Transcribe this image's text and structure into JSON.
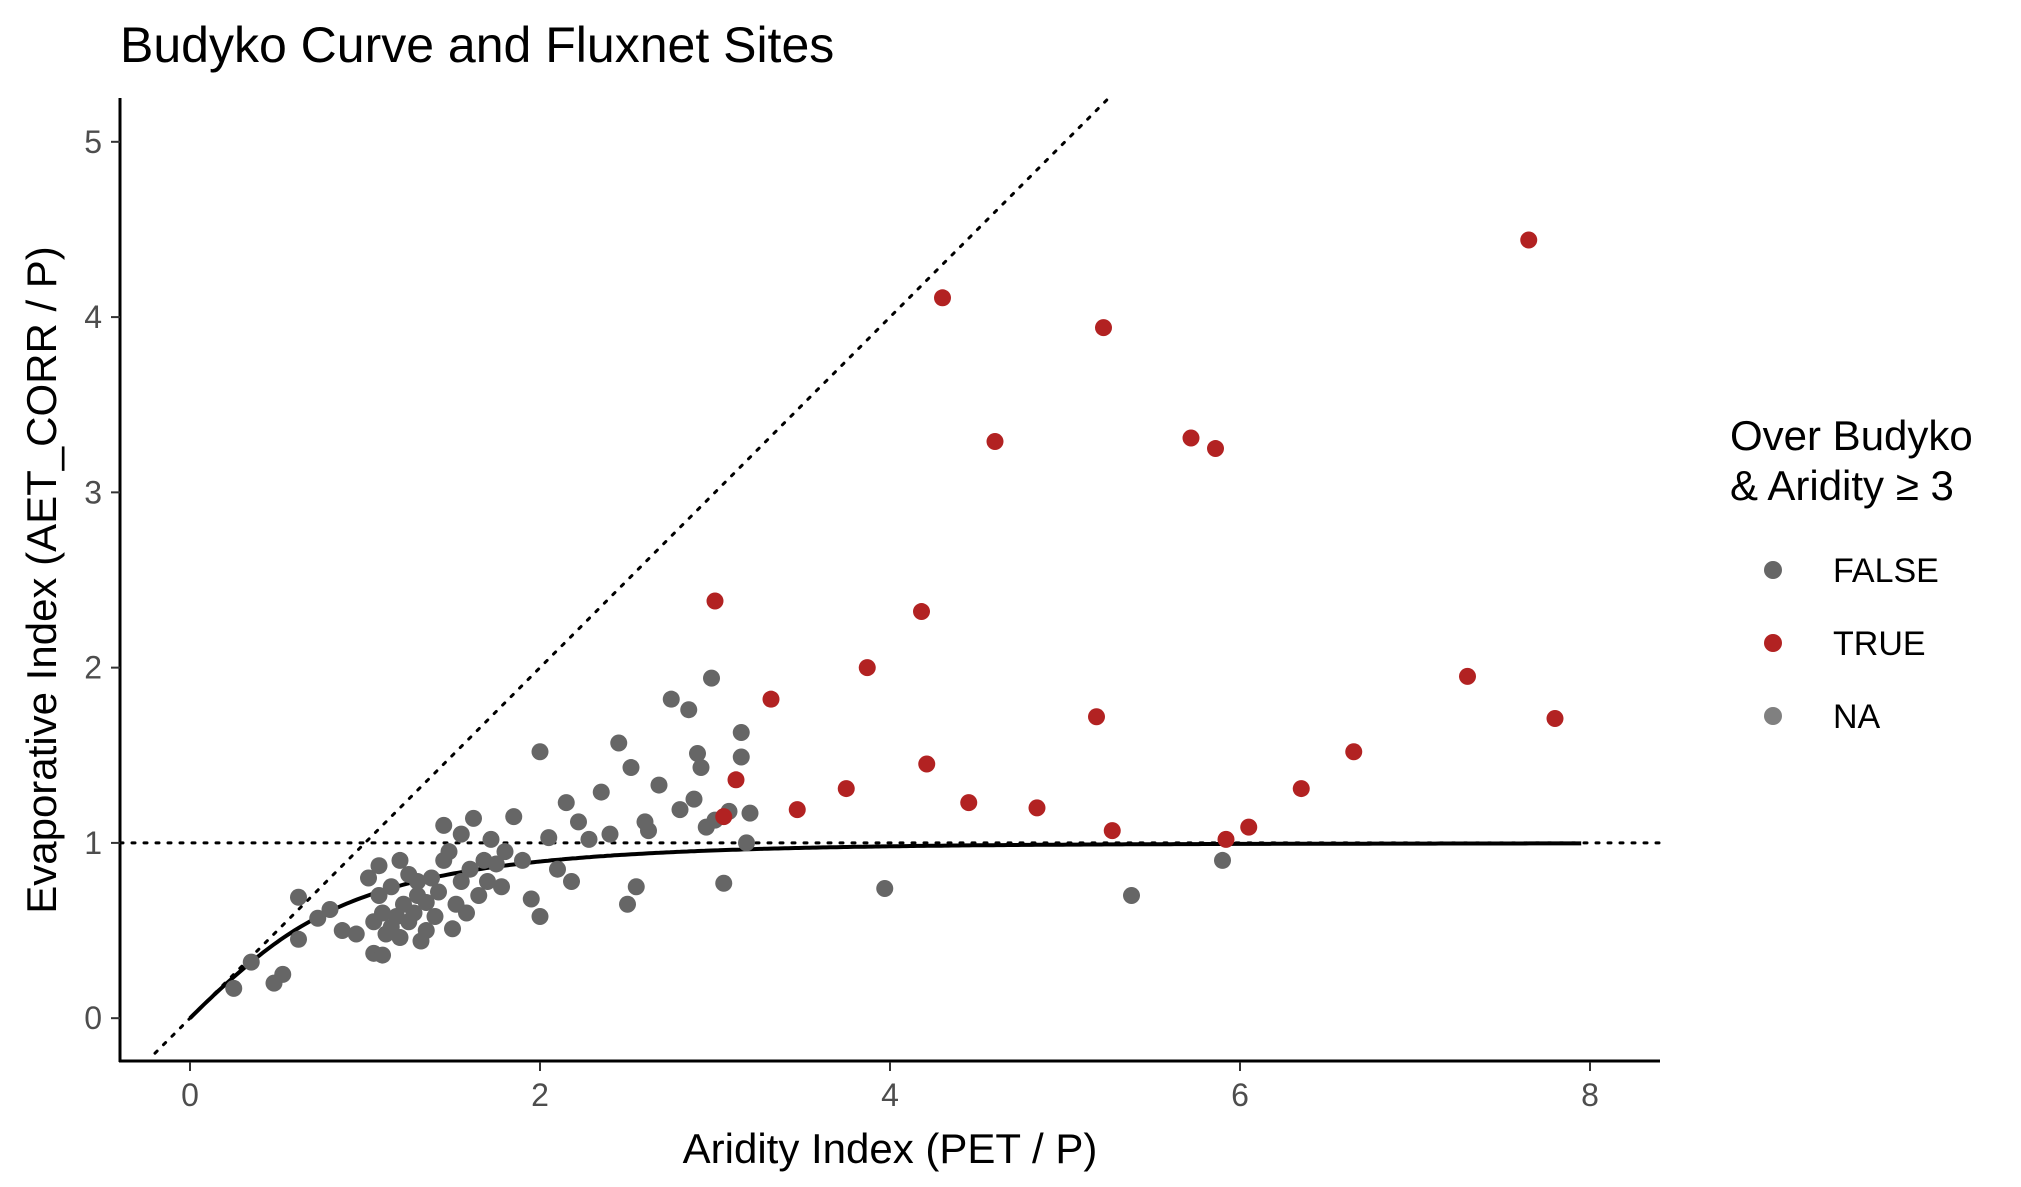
{
  "chart_data": {
    "type": "scatter",
    "title": "Budyko Curve and Fluxnet Sites",
    "xlabel": "Aridity Index (PET / P)",
    "ylabel": "Evaporative Index (AET_CORR / P)",
    "xlim": [
      -0.4,
      8.4
    ],
    "ylim": [
      -0.25,
      5.25
    ],
    "x_ticks": [
      "0",
      "2",
      "4",
      "6",
      "8"
    ],
    "y_ticks": [
      "0",
      "1",
      "2",
      "3",
      "4",
      "5"
    ],
    "grid": false,
    "legend": {
      "title_line1": "Over Budyko",
      "title_line2": "& Aridity ≥ 3",
      "placement": "right",
      "entries": [
        {
          "label": "FALSE",
          "color": "#666666"
        },
        {
          "label": "TRUE",
          "color": "#b22222"
        },
        {
          "label": "NA",
          "color": "#808080"
        }
      ]
    },
    "reference_lines": [
      {
        "name": "energy limit",
        "type": "dotted",
        "equation": "y = x",
        "x_range": [
          -0.2,
          5.25
        ]
      },
      {
        "name": "water limit",
        "type": "dotted",
        "equation": "y = 1",
        "x_range": [
          -0.4,
          8.4
        ]
      }
    ],
    "budyko_curve": {
      "type": "solid",
      "equation": "y = sqrt(x * tanh(1/x) * (1 - exp(-x)))",
      "x_range": [
        0,
        7.95
      ]
    },
    "series": [
      {
        "name": "FALSE",
        "color": "#666666",
        "points": [
          [
            0.25,
            0.17
          ],
          [
            0.35,
            0.32
          ],
          [
            0.48,
            0.2
          ],
          [
            0.53,
            0.25
          ],
          [
            0.62,
            0.45
          ],
          [
            0.62,
            0.69
          ],
          [
            0.73,
            0.57
          ],
          [
            0.8,
            0.62
          ],
          [
            0.87,
            0.5
          ],
          [
            0.95,
            0.48
          ],
          [
            1.02,
            0.8
          ],
          [
            1.05,
            0.37
          ],
          [
            1.05,
            0.55
          ],
          [
            1.08,
            0.7
          ],
          [
            1.08,
            0.87
          ],
          [
            1.1,
            0.36
          ],
          [
            1.1,
            0.6
          ],
          [
            1.12,
            0.48
          ],
          [
            1.15,
            0.52
          ],
          [
            1.15,
            0.75
          ],
          [
            1.18,
            0.58
          ],
          [
            1.2,
            0.46
          ],
          [
            1.2,
            0.9
          ],
          [
            1.22,
            0.65
          ],
          [
            1.25,
            0.55
          ],
          [
            1.25,
            0.82
          ],
          [
            1.28,
            0.6
          ],
          [
            1.3,
            0.7
          ],
          [
            1.3,
            0.78
          ],
          [
            1.32,
            0.44
          ],
          [
            1.35,
            0.5
          ],
          [
            1.35,
            0.66
          ],
          [
            1.38,
            0.8
          ],
          [
            1.4,
            0.58
          ],
          [
            1.42,
            0.72
          ],
          [
            1.45,
            0.9
          ],
          [
            1.45,
            1.1
          ],
          [
            1.48,
            0.95
          ],
          [
            1.5,
            0.51
          ],
          [
            1.52,
            0.65
          ],
          [
            1.55,
            0.78
          ],
          [
            1.55,
            1.05
          ],
          [
            1.58,
            0.6
          ],
          [
            1.6,
            0.85
          ],
          [
            1.62,
            1.14
          ],
          [
            1.65,
            0.7
          ],
          [
            1.68,
            0.9
          ],
          [
            1.7,
            0.78
          ],
          [
            1.72,
            1.02
          ],
          [
            1.75,
            0.88
          ],
          [
            1.78,
            0.75
          ],
          [
            1.8,
            0.95
          ],
          [
            1.85,
            1.15
          ],
          [
            1.9,
            0.9
          ],
          [
            1.95,
            0.68
          ],
          [
            2.0,
            1.52
          ],
          [
            2.0,
            0.58
          ],
          [
            2.05,
            1.03
          ],
          [
            2.1,
            0.85
          ],
          [
            2.15,
            1.23
          ],
          [
            2.18,
            0.78
          ],
          [
            2.22,
            1.12
          ],
          [
            2.28,
            1.02
          ],
          [
            2.35,
            1.29
          ],
          [
            2.4,
            1.05
          ],
          [
            2.45,
            1.57
          ],
          [
            2.5,
            0.65
          ],
          [
            2.52,
            1.43
          ],
          [
            2.55,
            0.75
          ],
          [
            2.6,
            1.12
          ],
          [
            2.62,
            1.07
          ],
          [
            2.68,
            1.33
          ],
          [
            2.75,
            1.82
          ],
          [
            2.8,
            1.19
          ],
          [
            2.85,
            1.76
          ],
          [
            2.88,
            1.25
          ],
          [
            2.9,
            1.51
          ],
          [
            2.92,
            1.43
          ],
          [
            2.95,
            1.09
          ],
          [
            2.98,
            1.94
          ],
          [
            3.0,
            1.13
          ],
          [
            3.05,
            0.77
          ],
          [
            3.08,
            1.18
          ],
          [
            3.15,
            1.63
          ],
          [
            3.15,
            1.49
          ],
          [
            3.18,
            1.0
          ],
          [
            3.2,
            1.17
          ],
          [
            3.97,
            0.74
          ],
          [
            5.38,
            0.7
          ],
          [
            5.9,
            0.9
          ]
        ]
      },
      {
        "name": "TRUE",
        "color": "#b22222",
        "points": [
          [
            3.0,
            2.38
          ],
          [
            3.05,
            1.15
          ],
          [
            3.12,
            1.36
          ],
          [
            3.32,
            1.82
          ],
          [
            3.47,
            1.19
          ],
          [
            3.75,
            1.31
          ],
          [
            3.87,
            2.0
          ],
          [
            4.18,
            2.32
          ],
          [
            4.21,
            1.45
          ],
          [
            4.3,
            4.11
          ],
          [
            4.45,
            1.23
          ],
          [
            4.6,
            3.29
          ],
          [
            4.84,
            1.2
          ],
          [
            5.18,
            1.72
          ],
          [
            5.22,
            3.94
          ],
          [
            5.27,
            1.07
          ],
          [
            5.72,
            3.31
          ],
          [
            5.86,
            3.25
          ],
          [
            5.92,
            1.02
          ],
          [
            6.05,
            1.09
          ],
          [
            6.35,
            1.31
          ],
          [
            6.65,
            1.52
          ],
          [
            7.3,
            1.95
          ],
          [
            7.65,
            4.44
          ],
          [
            7.8,
            1.71
          ]
        ]
      }
    ]
  }
}
